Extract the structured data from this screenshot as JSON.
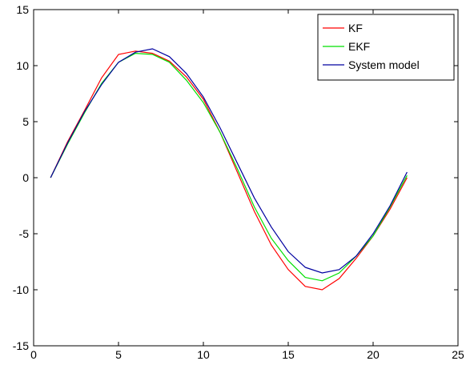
{
  "chart_data": {
    "type": "line",
    "xlim": [
      0,
      25
    ],
    "ylim": [
      -15,
      15
    ],
    "x_ticks": [
      0,
      5,
      10,
      15,
      20,
      25
    ],
    "y_ticks": [
      -15,
      -10,
      -5,
      0,
      5,
      10,
      15
    ],
    "grid": false,
    "legend_position": "top-right",
    "x": [
      1,
      2,
      3,
      4,
      5,
      6,
      7,
      8,
      9,
      10,
      11,
      12,
      13,
      14,
      15,
      16,
      17,
      18,
      19,
      20,
      21,
      22
    ],
    "series": [
      {
        "name": "KF",
        "color": "#ff0000",
        "values": [
          0,
          3.2,
          6.0,
          8.9,
          11.0,
          11.3,
          11.1,
          10.4,
          9.0,
          7.0,
          4.0,
          0.5,
          -3.0,
          -6.0,
          -8.2,
          -9.7,
          -10.0,
          -9.0,
          -7.2,
          -5.2,
          -2.8,
          0.0
        ]
      },
      {
        "name": "EKF",
        "color": "#00e000",
        "values": [
          0,
          3.0,
          5.8,
          8.4,
          10.3,
          11.1,
          11.0,
          10.3,
          8.7,
          6.7,
          4.0,
          0.8,
          -2.6,
          -5.4,
          -7.4,
          -8.9,
          -9.2,
          -8.5,
          -7.0,
          -5.2,
          -2.6,
          0.2
        ]
      },
      {
        "name": "System model",
        "color": "#0000a0",
        "values": [
          0,
          3.1,
          5.9,
          8.3,
          10.3,
          11.2,
          11.5,
          10.8,
          9.3,
          7.2,
          4.4,
          1.3,
          -1.8,
          -4.4,
          -6.6,
          -8.0,
          -8.5,
          -8.2,
          -7.0,
          -5.0,
          -2.5,
          0.5
        ]
      }
    ]
  }
}
